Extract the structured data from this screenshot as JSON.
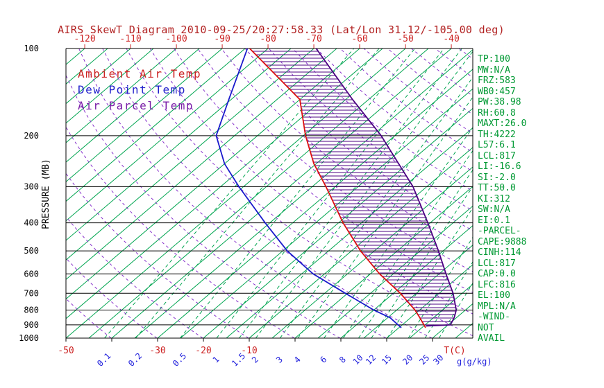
{
  "title": "AIRS SkewT Diagram 2010-09-25/20:27:58.33 (Lat/Lon 31.12/-105.00 deg)",
  "legend": [
    {
      "label": "Ambient Air Temp",
      "color": "#cc2222"
    },
    {
      "label": "Dew Point Temp",
      "color": "#2222cc"
    },
    {
      "label": "Air Parcel Temp",
      "color": "#7a1fa8"
    }
  ],
  "axes": {
    "pressure_label": "PRESSURE (MB)",
    "pressure_ticks": [
      100,
      200,
      300,
      400,
      500,
      600,
      700,
      800,
      900,
      1000
    ],
    "top_temp_ticks": [
      -120,
      -110,
      -100,
      -90,
      -80,
      -70,
      -60,
      -50,
      -40
    ],
    "bottom_temp_ticks": [
      -50,
      -30,
      -20,
      -10
    ],
    "bottom_temp_unit": "T(C)",
    "mixing_ratio_ticks": [
      0.1,
      0.2,
      0.5,
      1,
      1.5,
      2,
      3,
      4,
      6,
      8,
      10,
      12,
      15,
      20,
      25,
      30
    ],
    "mixing_ratio_unit": "g(g/kg)"
  },
  "panel": {
    "items": [
      "TP:100",
      "MW:N/A",
      "FRZ:583",
      "WB0:457",
      "PW:38.98",
      "RH:60.8",
      "MAXT:26.0",
      "TH:4222",
      "L57:6.1",
      "LCL:817",
      "LI:-16.6",
      "SI:-2.0",
      "TT:50.0",
      "KI:312",
      "SW:N/A",
      "EI:0.1",
      "-PARCEL-",
      "CAPE:9888",
      "CINH:114",
      "LCL:817",
      "CAP:0.0",
      "LFC:816",
      "EL:100",
      "MPL:N/A",
      "-WIND-",
      "NOT",
      "AVAIL"
    ]
  },
  "colors": {
    "title": "#b22222",
    "grid_green": "#00a550",
    "adiabat_purple": "#8833cc",
    "pressure_axis": "#000000",
    "top_labels": "#cc2222",
    "bottom_temp_labels": "#cc2222",
    "mixing_labels": "#2222dd",
    "panel_text": "#009933",
    "ambient": "#dd1111",
    "dewpoint": "#1a1acc",
    "parcel": "#4b0082"
  },
  "chart_data": {
    "type": "line",
    "subtype": "skew-t-log-p",
    "title": "AIRS SkewT Diagram 2010-09-25/20:27:58.33 (Lat/Lon 31.12/-105.00 deg)",
    "y_axis": {
      "label": "PRESSURE (MB)",
      "scale": "log",
      "range": [
        100,
        1000
      ],
      "ticks": [
        100,
        200,
        300,
        400,
        500,
        600,
        700,
        800,
        900,
        1000
      ]
    },
    "x_axis": {
      "label": "T(C)",
      "surface_range": [
        -50,
        39
      ],
      "top_tick_range": [
        -120,
        -40
      ],
      "skew_deg": 45
    },
    "grid": {
      "isotherm_step_c": 5,
      "dry_adiabat_step_k": 10,
      "isotherms_solid_green": true,
      "mixing_ratio_dashed_green": true,
      "dry_adiabats_dashed_purple": true
    },
    "mixing_ratio_lines_g_kg": [
      0.1,
      0.2,
      0.5,
      1,
      1.5,
      2,
      3,
      4,
      6,
      8,
      10,
      12,
      15,
      20,
      25,
      30
    ],
    "series": [
      {
        "name": "Ambient Air Temp",
        "color": "#dd1111",
        "points": [
          {
            "p": 920,
            "t": 25.8
          },
          {
            "p": 850,
            "t": 22.0
          },
          {
            "p": 800,
            "t": 19.0
          },
          {
            "p": 700,
            "t": 11.5
          },
          {
            "p": 600,
            "t": 2.0
          },
          {
            "p": 500,
            "t": -8.0
          },
          {
            "p": 400,
            "t": -19.0
          },
          {
            "p": 300,
            "t": -32.0
          },
          {
            "p": 250,
            "t": -40.5
          },
          {
            "p": 200,
            "t": -49.5
          },
          {
            "p": 150,
            "t": -60.0
          },
          {
            "p": 100,
            "t": -84.0
          }
        ]
      },
      {
        "name": "Dew Point Temp",
        "color": "#1a1acc",
        "points": [
          {
            "p": 920,
            "t": 20.5
          },
          {
            "p": 850,
            "t": 15.5
          },
          {
            "p": 800,
            "t": 10.0
          },
          {
            "p": 700,
            "t": -0.5
          },
          {
            "p": 600,
            "t": -12.5
          },
          {
            "p": 500,
            "t": -24.0
          },
          {
            "p": 400,
            "t": -36.0
          },
          {
            "p": 300,
            "t": -51.0
          },
          {
            "p": 250,
            "t": -60.0
          },
          {
            "p": 200,
            "t": -69.0
          },
          {
            "p": 150,
            "t": -75.5
          },
          {
            "p": 100,
            "t": -84.5
          }
        ]
      },
      {
        "name": "Air Parcel Temp",
        "color": "#4b0082",
        "points": [
          {
            "p": 908,
            "t": 25.5
          },
          {
            "p": 900,
            "t": 30.5
          },
          {
            "p": 850,
            "t": 29.5
          },
          {
            "p": 800,
            "t": 28.0
          },
          {
            "p": 700,
            "t": 23.0
          },
          {
            "p": 600,
            "t": 16.5
          },
          {
            "p": 500,
            "t": 9.0
          },
          {
            "p": 400,
            "t": -0.5
          },
          {
            "p": 300,
            "t": -13.0
          },
          {
            "p": 250,
            "t": -22.0
          },
          {
            "p": 200,
            "t": -33.0
          },
          {
            "p": 150,
            "t": -48.5
          },
          {
            "p": 100,
            "t": -69.5
          }
        ]
      }
    ],
    "hatch": {
      "between": [
        "Ambient Air Temp",
        "Air Parcel Temp"
      ],
      "pattern": "horizontal-lines",
      "color": "#4b0082",
      "meaning": "CAPE region"
    }
  }
}
